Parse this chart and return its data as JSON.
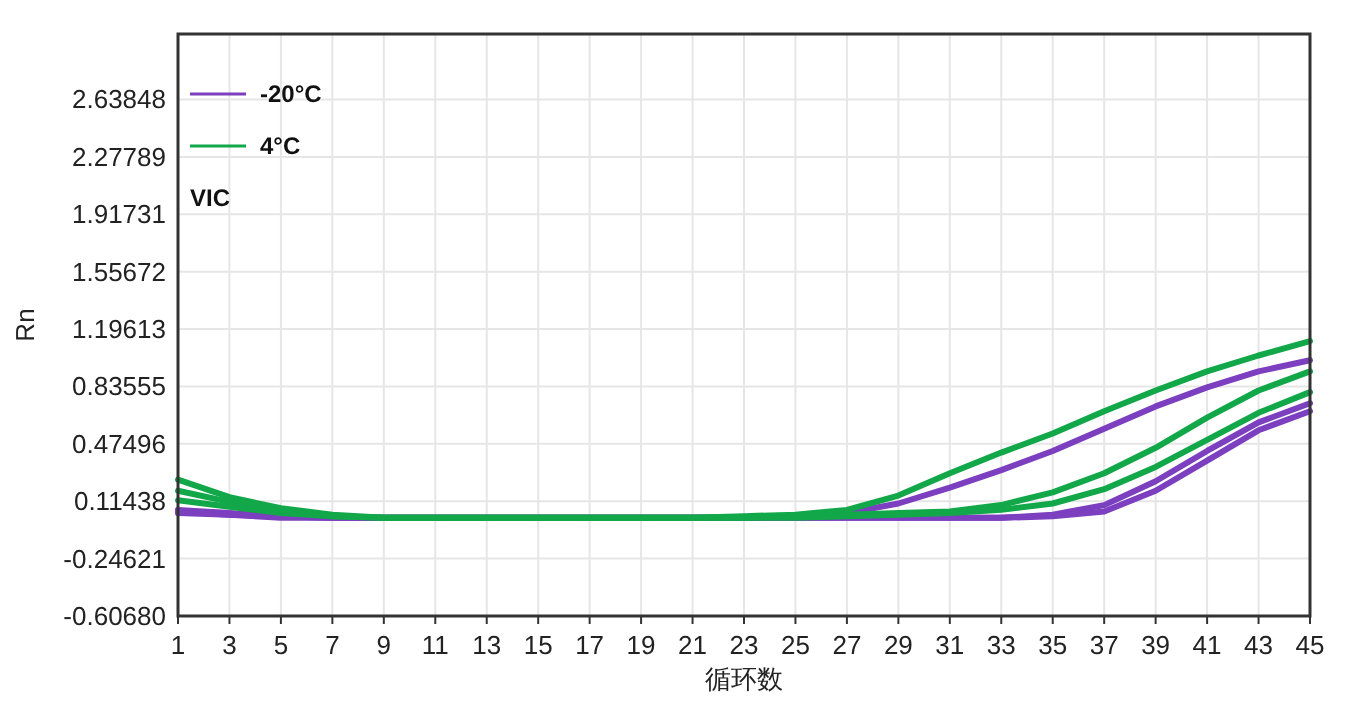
{
  "chart_data": {
    "type": "line",
    "xlabel": "循环数",
    "ylabel": "Rn",
    "annotations": [
      "VIC"
    ],
    "x": [
      1,
      3,
      5,
      7,
      9,
      11,
      13,
      15,
      17,
      19,
      21,
      23,
      25,
      27,
      29,
      31,
      33,
      35,
      37,
      39,
      41,
      43,
      45
    ],
    "xlim": [
      1,
      45
    ],
    "xticks": [
      1,
      3,
      5,
      7,
      9,
      11,
      13,
      15,
      17,
      19,
      21,
      23,
      25,
      27,
      29,
      31,
      33,
      35,
      37,
      39,
      41,
      43,
      45
    ],
    "ylim": [
      -0.6068,
      3.05
    ],
    "yticks": [
      {
        "value": -0.6068,
        "label": "-0.60680"
      },
      -0.24621,
      0.11438,
      0.47496,
      0.83555,
      1.19613,
      1.55672,
      1.91731,
      2.27789,
      2.63848
    ],
    "grid": true,
    "legend": "top left",
    "line_style": "solid",
    "marker": "none",
    "series": [
      {
        "name": "-20°C",
        "color": "#7b3fbf",
        "values": [
          0.06,
          0.04,
          0.02,
          0.01,
          0.01,
          0.01,
          0.01,
          0.01,
          0.01,
          0.01,
          0.01,
          0.01,
          0.02,
          0.04,
          0.1,
          0.2,
          0.31,
          0.43,
          0.57,
          0.71,
          0.83,
          0.93,
          1.0
        ]
      },
      {
        "color": "#7b3fbf",
        "values": [
          0.05,
          0.03,
          0.02,
          0.01,
          0.01,
          0.01,
          0.01,
          0.01,
          0.01,
          0.01,
          0.01,
          0.01,
          0.01,
          0.01,
          0.01,
          0.01,
          0.01,
          0.03,
          0.09,
          0.24,
          0.43,
          0.61,
          0.73
        ]
      },
      {
        "color": "#7b3fbf",
        "values": [
          0.04,
          0.03,
          0.01,
          0.01,
          0.01,
          0.01,
          0.01,
          0.01,
          0.01,
          0.01,
          0.01,
          0.01,
          0.01,
          0.01,
          0.01,
          0.01,
          0.01,
          0.02,
          0.05,
          0.18,
          0.37,
          0.56,
          0.68
        ]
      },
      {
        "name": "4°C",
        "color": "#12a84a",
        "values": [
          0.25,
          0.14,
          0.07,
          0.03,
          0.01,
          0.01,
          0.01,
          0.01,
          0.01,
          0.01,
          0.01,
          0.02,
          0.03,
          0.06,
          0.15,
          0.29,
          0.42,
          0.54,
          0.68,
          0.81,
          0.93,
          1.03,
          1.12
        ]
      },
      {
        "color": "#12a84a",
        "values": [
          0.18,
          0.11,
          0.06,
          0.02,
          0.01,
          0.01,
          0.01,
          0.01,
          0.01,
          0.01,
          0.01,
          0.01,
          0.02,
          0.03,
          0.04,
          0.05,
          0.09,
          0.17,
          0.29,
          0.45,
          0.64,
          0.81,
          0.93
        ]
      },
      {
        "color": "#12a84a",
        "values": [
          0.12,
          0.08,
          0.04,
          0.02,
          0.01,
          0.01,
          0.01,
          0.01,
          0.01,
          0.01,
          0.01,
          0.01,
          0.01,
          0.02,
          0.03,
          0.04,
          0.06,
          0.1,
          0.19,
          0.33,
          0.5,
          0.67,
          0.8
        ]
      }
    ]
  }
}
